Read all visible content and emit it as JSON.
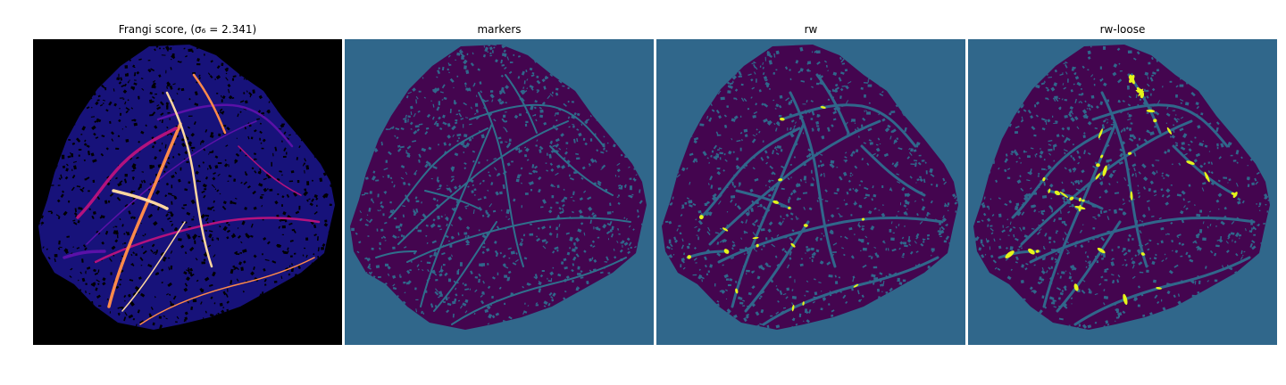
{
  "figure": {
    "panels": [
      {
        "id": "frangi",
        "title": "Frangi score, (σ₆ = 2.341)",
        "colormap": "magma-like",
        "background": "#000000",
        "tissue": "#17127a",
        "vessel_colors": [
          "#5a11a8",
          "#b3127e",
          "#ff8a4a",
          "#ffd7a0"
        ]
      },
      {
        "id": "markers",
        "title": "markers",
        "colormap": "viridis",
        "background": "#30678b",
        "tissue": "#44054f",
        "marker": "#2f6f8c"
      },
      {
        "id": "rw",
        "title": "rw",
        "colormap": "viridis",
        "background": "#30678b",
        "tissue": "#44054f",
        "highlight": "#e6f51a"
      },
      {
        "id": "rw-loose",
        "title": "rw-loose",
        "colormap": "viridis",
        "background": "#30678b",
        "tissue": "#44054f",
        "highlight": "#e6f51a"
      }
    ]
  }
}
